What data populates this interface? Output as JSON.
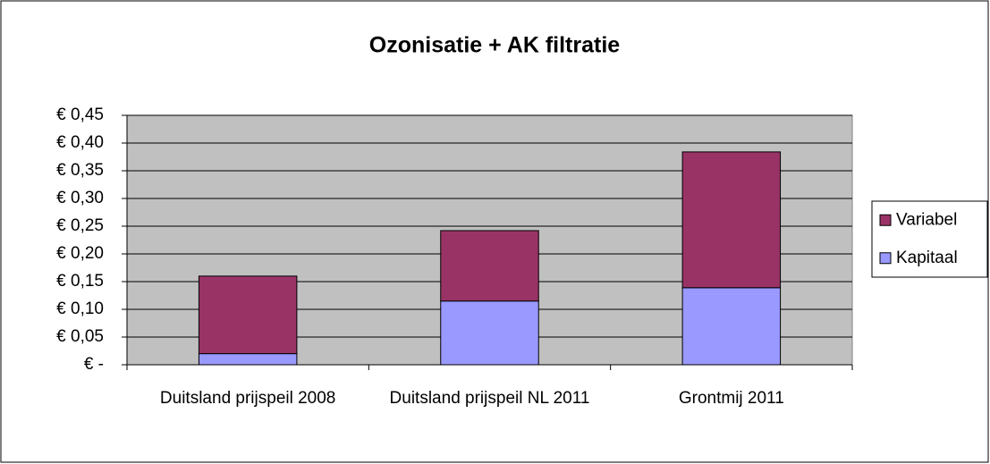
{
  "chart_data": {
    "type": "stacked_bar",
    "title": "Ozonisatie + AK filtratie",
    "categories": [
      "Duitsland prijspeil 2008",
      "Duitsland prijspeil NL 2011",
      "Grontmij 2011"
    ],
    "series": [
      {
        "name": "Kapitaal",
        "color": "#9999ff",
        "values": [
          0.02,
          0.115,
          0.139
        ]
      },
      {
        "name": "Variabel",
        "color": "#993366",
        "values": [
          0.14,
          0.127,
          0.245
        ]
      }
    ],
    "ylim": [
      0,
      0.45
    ],
    "yticks": [
      {
        "value": 0,
        "label": "€ -"
      },
      {
        "value": 0.05,
        "label": "€ 0,05"
      },
      {
        "value": 0.1,
        "label": "€ 0,10"
      },
      {
        "value": 0.15,
        "label": "€ 0,15"
      },
      {
        "value": 0.2,
        "label": "€ 0,20"
      },
      {
        "value": 0.25,
        "label": "€ 0,25"
      },
      {
        "value": 0.3,
        "label": "€ 0,30"
      },
      {
        "value": 0.35,
        "label": "€ 0,35"
      },
      {
        "value": 0.4,
        "label": "€ 0,40"
      },
      {
        "value": 0.45,
        "label": "€ 0,45"
      }
    ],
    "grid": true,
    "legend": "right"
  }
}
